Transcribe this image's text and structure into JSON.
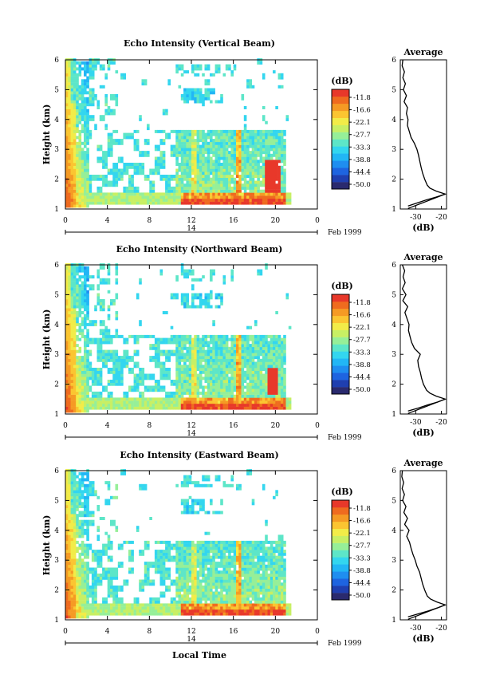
{
  "colormap": [
    "#2a2a6e",
    "#1f3fb0",
    "#1e64e0",
    "#1f8ef0",
    "#22b6f5",
    "#33d6ef",
    "#5de6c8",
    "#96ef98",
    "#c8ef64",
    "#f2ec48",
    "#fbc531",
    "#f59a24",
    "#ef6b1f",
    "#e8382a"
  ],
  "shared": {
    "xticks": [
      "0",
      "4",
      "8",
      "12",
      "16",
      "20",
      "0"
    ],
    "date_label": "14",
    "date_suffix": "Feb 1999",
    "xlabel": "Local Time",
    "ylabel": "Height (km)",
    "yticks": [
      "1",
      "2",
      "3",
      "4",
      "5",
      "6"
    ],
    "colorbar_unit": "(dB)",
    "colorbar_ticks": [
      "-11.8",
      "-16.6",
      "-22.1",
      "-27.7",
      "-33.3",
      "-38.8",
      "-44.4",
      "-50.0"
    ],
    "profile_title": "Average",
    "profile_xticks": [
      "-30",
      "-20"
    ],
    "profile_xlabel": "(dB)"
  },
  "chart_data": [
    {
      "type": "heatmap",
      "title": "Echo Intensity (Vertical Beam)",
      "xlim": [
        0,
        24
      ],
      "ylim": [
        1,
        6
      ],
      "clim": [
        -51,
        -10
      ],
      "unit": "dB",
      "average_profile": {
        "title": "Average",
        "xlim": [
          -36,
          -18
        ],
        "height": [
          1.1,
          1.2,
          1.3,
          1.4,
          1.5,
          1.6,
          1.7,
          1.8,
          2.0,
          2.2,
          2.4,
          2.6,
          2.8,
          3.0,
          3.2,
          3.4,
          3.6,
          3.8,
          4.0,
          4.2,
          4.4,
          4.6,
          4.8,
          5.0,
          5.2,
          5.4,
          5.6,
          5.8,
          6.0
        ],
        "db": [
          -33,
          -29.5,
          -26,
          -22,
          -18.5,
          -22,
          -24.5,
          -25.5,
          -26.5,
          -27.3,
          -27.9,
          -28.4,
          -28.9,
          -29.5,
          -30.5,
          -31.8,
          -32.5,
          -33.2,
          -33,
          -33.6,
          -33.2,
          -34.5,
          -33.6,
          -34.8,
          -34,
          -35,
          -34.4,
          -35.3,
          -35
        ]
      }
    },
    {
      "type": "heatmap",
      "title": "Echo Intensity (Northward Beam)",
      "xlim": [
        0,
        24
      ],
      "ylim": [
        1,
        6
      ],
      "clim": [
        -51,
        -10
      ],
      "unit": "dB",
      "average_profile": {
        "title": "Average",
        "xlim": [
          -36,
          -18
        ],
        "height": [
          1.1,
          1.2,
          1.3,
          1.4,
          1.5,
          1.6,
          1.7,
          1.8,
          2.0,
          2.2,
          2.4,
          2.6,
          2.8,
          3.0,
          3.2,
          3.4,
          3.6,
          3.8,
          4.0,
          4.2,
          4.4,
          4.6,
          4.8,
          5.0,
          5.2,
          5.4,
          5.6,
          5.8,
          6.0
        ],
        "db": [
          -33,
          -29,
          -25.5,
          -21.5,
          -18.5,
          -22,
          -24.5,
          -25.8,
          -27,
          -27.7,
          -28.2,
          -28.9,
          -29.2,
          -28.2,
          -30.5,
          -31.6,
          -32.2,
          -32.8,
          -32.6,
          -33.4,
          -34.2,
          -33.1,
          -35,
          -33.8,
          -35.2,
          -34.1,
          -34.9,
          -34.3,
          -35.2
        ]
      }
    },
    {
      "type": "heatmap",
      "title": "Echo Intensity (Eastward Beam)",
      "xlim": [
        0,
        24
      ],
      "ylim": [
        1,
        6
      ],
      "clim": [
        -51,
        -10
      ],
      "unit": "dB",
      "average_profile": {
        "title": "Average",
        "xlim": [
          -36,
          -18
        ],
        "height": [
          1.1,
          1.2,
          1.3,
          1.4,
          1.5,
          1.6,
          1.7,
          1.8,
          2.0,
          2.2,
          2.4,
          2.6,
          2.8,
          3.0,
          3.2,
          3.4,
          3.6,
          3.8,
          4.0,
          4.2,
          4.4,
          4.6,
          4.8,
          5.0,
          5.2,
          5.4,
          5.6,
          5.8,
          6.0
        ],
        "db": [
          -33,
          -29,
          -25,
          -21.5,
          -18.5,
          -21.8,
          -24.3,
          -25.5,
          -26.5,
          -27.3,
          -27.9,
          -28.5,
          -29.5,
          -30.2,
          -31.1,
          -31.8,
          -32.4,
          -33.5,
          -32.6,
          -34.3,
          -33.2,
          -34.6,
          -33.8,
          -35.1,
          -34.4,
          -35.3,
          -34.7,
          -35.4,
          -35.2
        ]
      }
    }
  ]
}
